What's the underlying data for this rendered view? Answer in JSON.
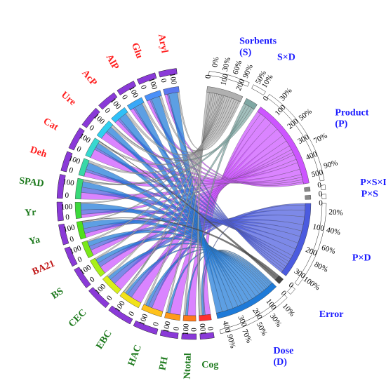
{
  "chart_data": {
    "type": "chord",
    "title": "",
    "factors": [
      {
        "key": "S",
        "name": "Sorbents",
        "sub": "(S)",
        "color": "#b0b0b0",
        "label_color": "#1a1aff"
      },
      {
        "key": "SxD",
        "name": "S×D",
        "color": "#7fa7a3",
        "label_color": "#1a1aff"
      },
      {
        "key": "P",
        "name": "Product",
        "sub": "(P)",
        "color": "#cc55ff",
        "label_color": "#1a1aff"
      },
      {
        "key": "PxSxD",
        "name": "P×S×D",
        "color": "#888888",
        "label_color": "#1a1aff"
      },
      {
        "key": "PxS",
        "name": "P×S",
        "color": "#888888",
        "label_color": "#1a1aff"
      },
      {
        "key": "PxD",
        "name": "P×D",
        "color": "#4b5bdf",
        "label_color": "#1a1aff"
      },
      {
        "key": "Err",
        "name": "Error",
        "color": "#444444",
        "label_color": "#1a1aff"
      },
      {
        "key": "D",
        "name": "Dose",
        "sub": "(D)",
        "color": "#1e7ad8",
        "label_color": "#1a1aff"
      }
    ],
    "traits": [
      {
        "name": "Cog",
        "color": "#ff3030",
        "label_color": "#1e7a1e"
      },
      {
        "name": "Ntotal",
        "color": "#ff7a1a",
        "label_color": "#1e7a1e"
      },
      {
        "name": "PH",
        "color": "#ff9a1a",
        "label_color": "#1e7a1e"
      },
      {
        "name": "HAC",
        "color": "#ffc21a",
        "label_color": "#1e7a1e"
      },
      {
        "name": "EBC",
        "color": "#f2e21a",
        "label_color": "#1e7a1e"
      },
      {
        "name": "CEC",
        "color": "#d8f01a",
        "label_color": "#1e7a1e"
      },
      {
        "name": "BS",
        "color": "#a8f01a",
        "label_color": "#1e7a1e"
      },
      {
        "name": "BA21",
        "color": "#7ae81a",
        "label_color": "#c01818"
      },
      {
        "name": "Ya",
        "color": "#4fe01a",
        "label_color": "#1e7a1e"
      },
      {
        "name": "Yr",
        "color": "#3cd83c",
        "label_color": "#1e7a1e"
      },
      {
        "name": "SPAD",
        "color": "#38d878",
        "label_color": "#1e7a1e"
      },
      {
        "name": "Deh",
        "color": "#38d8a8",
        "label_color": "#ff2020"
      },
      {
        "name": "Cat",
        "color": "#38d8d0",
        "label_color": "#ff2020"
      },
      {
        "name": "Ure",
        "color": "#30d0f0",
        "label_color": "#ff2020"
      },
      {
        "name": "AcP",
        "color": "#30c0f8",
        "label_color": "#ff2020"
      },
      {
        "name": "AlP",
        "color": "#3aa8f8",
        "label_color": "#ff2020"
      },
      {
        "name": "Glu",
        "color": "#4a90f8",
        "label_color": "#ff2020"
      },
      {
        "name": "Aryl",
        "color": "#5a78f0",
        "label_color": "#ff2020"
      }
    ],
    "percent_ticks": [
      "0%",
      "10%",
      "20%",
      "30%",
      "40%",
      "50%",
      "60%",
      "70%",
      "80%",
      "90%",
      "100%"
    ],
    "factor_scale": {
      "S": {
        "ticks": [
          0,
          100,
          200
        ],
        "percent_labels": [
          "0%",
          "30%",
          "60%",
          "90%"
        ]
      },
      "SxD": {
        "ticks": [],
        "percent_labels": [
          "50%",
          "10%"
        ]
      },
      "P": {
        "ticks": [
          0,
          100,
          200,
          300,
          400,
          500
        ],
        "percent_labels": [
          "30%",
          "50%",
          "70%",
          "90%"
        ]
      },
      "PxSxD": {
        "ticks": [
          0
        ],
        "percent_labels": []
      },
      "PxS": {
        "ticks": [
          0
        ],
        "percent_labels": []
      },
      "PxD": {
        "ticks": [
          0,
          100,
          200,
          300
        ],
        "percent_labels": [
          "20%",
          "40%",
          "60%",
          "80%",
          "100%"
        ]
      },
      "Err": {
        "ticks": [
          0
        ],
        "percent_labels": []
      },
      "D": {
        "ticks": [
          0,
          100,
          200,
          300,
          400
        ],
        "percent_labels": [
          "10%",
          "30%",
          "50%",
          "70%",
          "90%"
        ]
      }
    },
    "trait_ticks": [
      "0",
      "100"
    ],
    "links": [
      {
        "from": "P",
        "to": "Cog",
        "value": 28
      },
      {
        "from": "P",
        "to": "Ntotal",
        "value": 42
      },
      {
        "from": "P",
        "to": "PH",
        "value": 55
      },
      {
        "from": "P",
        "to": "HAC",
        "value": 60
      },
      {
        "from": "P",
        "to": "EBC",
        "value": 58
      },
      {
        "from": "P",
        "to": "CEC",
        "value": 45
      },
      {
        "from": "P",
        "to": "BS",
        "value": 40
      },
      {
        "from": "P",
        "to": "BA21",
        "value": 30
      },
      {
        "from": "P",
        "to": "Ya",
        "value": 22
      },
      {
        "from": "P",
        "to": "Yr",
        "value": 18
      },
      {
        "from": "P",
        "to": "SPAD",
        "value": 35
      },
      {
        "from": "P",
        "to": "Deh",
        "value": 25
      },
      {
        "from": "P",
        "to": "Cat",
        "value": 48
      },
      {
        "from": "P",
        "to": "Ure",
        "value": 38
      },
      {
        "from": "P",
        "to": "AcP",
        "value": 20
      },
      {
        "from": "P",
        "to": "AlP",
        "value": 18
      },
      {
        "from": "P",
        "to": "Glu",
        "value": 16
      },
      {
        "from": "P",
        "to": "Aryl",
        "value": 14
      },
      {
        "from": "PxD",
        "to": "Cog",
        "value": 6
      },
      {
        "from": "PxD",
        "to": "HAC",
        "value": 20
      },
      {
        "from": "PxD",
        "to": "EBC",
        "value": 25
      },
      {
        "from": "PxD",
        "to": "CEC",
        "value": 30
      },
      {
        "from": "PxD",
        "to": "BS",
        "value": 24
      },
      {
        "from": "PxD",
        "to": "BA21",
        "value": 22
      },
      {
        "from": "PxD",
        "to": "Ya",
        "value": 26
      },
      {
        "from": "PxD",
        "to": "Yr",
        "value": 24
      },
      {
        "from": "PxD",
        "to": "SPAD",
        "value": 28
      },
      {
        "from": "PxD",
        "to": "Deh",
        "value": 14
      },
      {
        "from": "PxD",
        "to": "Cat",
        "value": 12
      },
      {
        "from": "PxD",
        "to": "Ure",
        "value": 10
      },
      {
        "from": "PxD",
        "to": "AcP",
        "value": 12
      },
      {
        "from": "PxD",
        "to": "AlP",
        "value": 10
      },
      {
        "from": "PxD",
        "to": "Glu",
        "value": 10
      },
      {
        "from": "PxD",
        "to": "Aryl",
        "value": 8
      },
      {
        "from": "D",
        "to": "Cog",
        "value": 10
      },
      {
        "from": "D",
        "to": "Ntotal",
        "value": 12
      },
      {
        "from": "D",
        "to": "PH",
        "value": 14
      },
      {
        "from": "D",
        "to": "HAC",
        "value": 16
      },
      {
        "from": "D",
        "to": "EBC",
        "value": 14
      },
      {
        "from": "D",
        "to": "CEC",
        "value": 18
      },
      {
        "from": "D",
        "to": "BS",
        "value": 22
      },
      {
        "from": "D",
        "to": "BA21",
        "value": 24
      },
      {
        "from": "D",
        "to": "Ya",
        "value": 32
      },
      {
        "from": "D",
        "to": "Yr",
        "value": 34
      },
      {
        "from": "D",
        "to": "SPAD",
        "value": 30
      },
      {
        "from": "D",
        "to": "Deh",
        "value": 36
      },
      {
        "from": "D",
        "to": "Cat",
        "value": 26
      },
      {
        "from": "D",
        "to": "Ure",
        "value": 30
      },
      {
        "from": "D",
        "to": "AcP",
        "value": 40
      },
      {
        "from": "D",
        "to": "AlP",
        "value": 42
      },
      {
        "from": "D",
        "to": "Glu",
        "value": 44
      },
      {
        "from": "D",
        "to": "Aryl",
        "value": 46
      },
      {
        "from": "S",
        "to": "Cog",
        "value": 14
      },
      {
        "from": "S",
        "to": "Ntotal",
        "value": 10
      },
      {
        "from": "S",
        "to": "PH",
        "value": 8
      },
      {
        "from": "S",
        "to": "HAC",
        "value": 10
      },
      {
        "from": "S",
        "to": "EBC",
        "value": 10
      },
      {
        "from": "S",
        "to": "CEC",
        "value": 10
      },
      {
        "from": "S",
        "to": "BS",
        "value": 8
      },
      {
        "from": "S",
        "to": "BA21",
        "value": 8
      },
      {
        "from": "S",
        "to": "Ya",
        "value": 6
      },
      {
        "from": "S",
        "to": "Yr",
        "value": 6
      },
      {
        "from": "S",
        "to": "SPAD",
        "value": 8
      },
      {
        "from": "S",
        "to": "Deh",
        "value": 12
      },
      {
        "from": "S",
        "to": "Cat",
        "value": 10
      },
      {
        "from": "S",
        "to": "Ure",
        "value": 12
      },
      {
        "from": "S",
        "to": "AcP",
        "value": 14
      },
      {
        "from": "S",
        "to": "AlP",
        "value": 12
      },
      {
        "from": "S",
        "to": "Glu",
        "value": 12
      },
      {
        "from": "S",
        "to": "Aryl",
        "value": 10
      },
      {
        "from": "SxD",
        "to": "Cog",
        "value": 3
      },
      {
        "from": "SxD",
        "to": "EBC",
        "value": 3
      },
      {
        "from": "SxD",
        "to": "SPAD",
        "value": 3
      },
      {
        "from": "SxD",
        "to": "Ure",
        "value": 3
      },
      {
        "from": "Err",
        "to": "Ya",
        "value": 3
      },
      {
        "from": "Err",
        "to": "Cat",
        "value": 3
      }
    ]
  }
}
